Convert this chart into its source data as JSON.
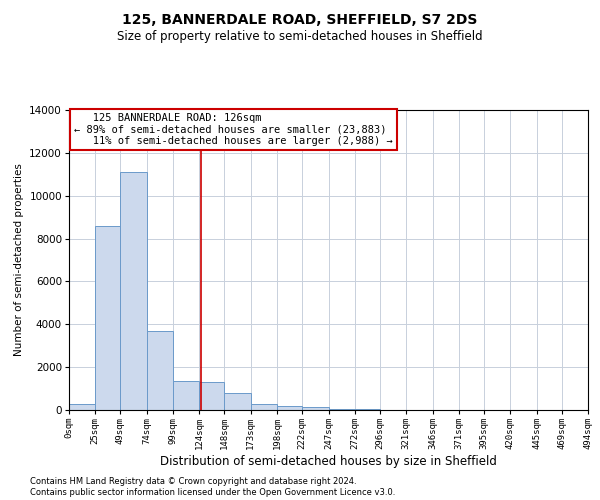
{
  "title1": "125, BANNERDALE ROAD, SHEFFIELD, S7 2DS",
  "title2": "Size of property relative to semi-detached houses in Sheffield",
  "xlabel": "Distribution of semi-detached houses by size in Sheffield",
  "ylabel": "Number of semi-detached properties",
  "property_label": "125 BANNERDALE ROAD: 126sqm",
  "pct_smaller": 89,
  "pct_larger": 11,
  "n_smaller": "23,883",
  "n_larger": "2,988",
  "bin_edges": [
    0,
    25,
    49,
    74,
    99,
    124,
    148,
    173,
    198,
    222,
    247,
    272,
    296,
    321,
    346,
    371,
    395,
    420,
    445,
    469,
    494
  ],
  "bar_heights": [
    300,
    8600,
    11100,
    3700,
    1350,
    1300,
    800,
    300,
    200,
    150,
    50,
    30,
    15,
    10,
    5,
    3,
    2,
    1,
    1,
    1
  ],
  "bar_color": "#ccd9ed",
  "bar_edge_color": "#6b9aca",
  "vline_color": "#cc0000",
  "vline_x": 126,
  "ylim": [
    0,
    14000
  ],
  "xlim": [
    0,
    494
  ],
  "grid_color": "#c8d0dc",
  "annotation_box_color": "#cc0000",
  "footer1": "Contains HM Land Registry data © Crown copyright and database right 2024.",
  "footer2": "Contains public sector information licensed under the Open Government Licence v3.0."
}
